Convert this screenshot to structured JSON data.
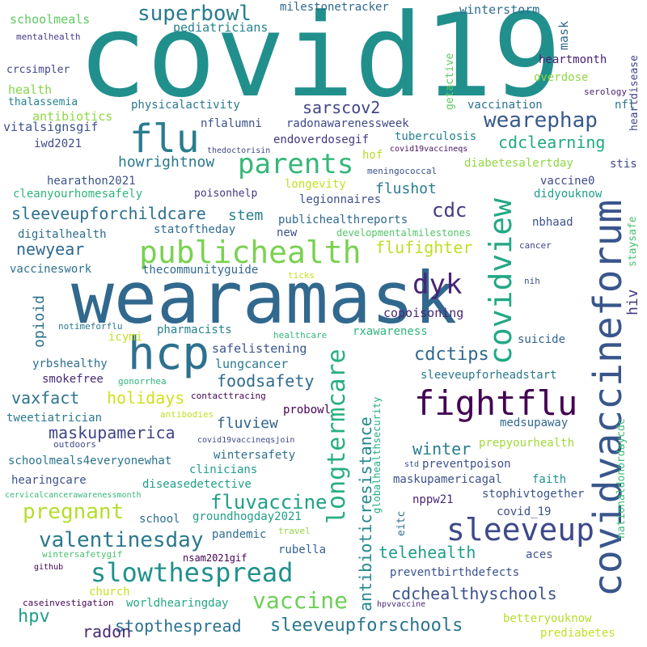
{
  "words": [
    {
      "text": "covid19",
      "color": "#21908d"
    },
    {
      "text": "wearamask",
      "color": "#31688e"
    },
    {
      "text": "hcp",
      "color": "#2c728e"
    },
    {
      "text": "covidvaccineforum",
      "color": "#39568c"
    },
    {
      "text": "flu",
      "color": "#287d8e"
    },
    {
      "text": "fightflu",
      "color": "#440154"
    },
    {
      "text": "publichealth",
      "color": "#7ad151"
    },
    {
      "text": "covidview",
      "color": "#22a884"
    },
    {
      "text": "sleeveup",
      "color": "#3e4989"
    },
    {
      "text": "parents",
      "color": "#35b779"
    },
    {
      "text": "dyk",
      "color": "#482475"
    },
    {
      "text": "slowthespread",
      "color": "#21918c"
    },
    {
      "text": "longtermcare",
      "color": "#29af7f"
    },
    {
      "text": "vaccine",
      "color": "#6ece58"
    },
    {
      "text": "valentinesday",
      "color": "#2a788e"
    },
    {
      "text": "superbowl",
      "color": "#287c8e"
    },
    {
      "text": "pregnant",
      "color": "#b5de2b"
    },
    {
      "text": "wearephap",
      "color": "#38598c"
    },
    {
      "text": "fluvaccine",
      "color": "#1fa088"
    },
    {
      "text": "sleeveupforschools",
      "color": "#2a768e"
    },
    {
      "text": "cdc",
      "color": "#443a83"
    },
    {
      "text": "sleeveupforchildcare",
      "color": "#2d708e"
    },
    {
      "text": "foodsafety",
      "color": "#306a8e"
    },
    {
      "text": "cdctips",
      "color": "#31688e"
    },
    {
      "text": "holidays",
      "color": "#d0e11c"
    },
    {
      "text": "maskupamerica",
      "color": "#404688"
    },
    {
      "text": "hpv",
      "color": "#1f9e89"
    },
    {
      "text": "antibioticresistance",
      "color": "#23888e"
    },
    {
      "text": "flufighter",
      "color": "#bddf26"
    },
    {
      "text": "howrightnow",
      "color": "#2a788e"
    },
    {
      "text": "cdchealthyschools",
      "color": "#3b528b"
    },
    {
      "text": "stopthespread",
      "color": "#2c728e"
    },
    {
      "text": "vaxfact",
      "color": "#2c728e"
    },
    {
      "text": "telehealth",
      "color": "#1f9e89"
    },
    {
      "text": "winter",
      "color": "#287d8e"
    },
    {
      "text": "newyear",
      "color": "#31688e"
    },
    {
      "text": "radon",
      "color": "#482878"
    },
    {
      "text": "sarscov2",
      "color": "#414487"
    },
    {
      "text": "cdclearning",
      "color": "#22a884"
    },
    {
      "text": "flushot",
      "color": "#287d8e"
    },
    {
      "text": "opioid",
      "color": "#2c728e"
    },
    {
      "text": "fluview",
      "color": "#33638d"
    },
    {
      "text": "stem",
      "color": "#26828e"
    },
    {
      "text": "hiv",
      "color": "#453781"
    },
    {
      "text": "winterstorm",
      "color": "#2e6e8e"
    },
    {
      "text": "mask",
      "color": "#31688e"
    },
    {
      "text": "lungcancer",
      "color": "#2a788e"
    },
    {
      "text": "safelistening",
      "color": "#3a548c"
    },
    {
      "text": "pediatricians",
      "color": "#26828e"
    },
    {
      "text": "schoolmeals",
      "color": "#5ec962"
    },
    {
      "text": "milestonetracker",
      "color": "#31688e"
    },
    {
      "text": "mentalhealth",
      "color": "#443983"
    },
    {
      "text": "crcsimpler",
      "color": "#404688"
    },
    {
      "text": "health",
      "color": "#86d549"
    },
    {
      "text": "thalassemia",
      "color": "#26828e"
    },
    {
      "text": "antibiotics",
      "color": "#90d743"
    },
    {
      "text": "vitalsignsgif",
      "color": "#3b528b"
    },
    {
      "text": "iwd2021",
      "color": "#3e4c8a"
    },
    {
      "text": "physicalactivity",
      "color": "#2a788e"
    },
    {
      "text": "nflalumni",
      "color": "#3b528b"
    },
    {
      "text": "radonawarenessweek",
      "color": "#3e4989"
    },
    {
      "text": "vaccination",
      "color": "#2c728e"
    },
    {
      "text": "heartmonth",
      "color": "#482173"
    },
    {
      "text": "overdose",
      "color": "#90d743"
    },
    {
      "text": "serology",
      "color": "#481f70"
    },
    {
      "text": "heartdisease",
      "color": "#414487"
    },
    {
      "text": "nfl",
      "color": "#2a788e"
    },
    {
      "text": "getactive",
      "color": "#5ec962"
    },
    {
      "text": "thedoctorisin",
      "color": "#3e4989"
    },
    {
      "text": "endoverdosegif",
      "color": "#453781"
    },
    {
      "text": "tuberculosis",
      "color": "#26828e"
    },
    {
      "text": "covid19vaccineqs",
      "color": "#471365"
    },
    {
      "text": "diabetesalertday",
      "color": "#90d743"
    },
    {
      "text": "stis",
      "color": "#404688"
    },
    {
      "text": "hof",
      "color": "#b5de2b"
    },
    {
      "text": "meningococcal",
      "color": "#3b528b"
    },
    {
      "text": "hearathon2021",
      "color": "#3b528b"
    },
    {
      "text": "cleanyourhomesafely",
      "color": "#2fb47c"
    },
    {
      "text": "poisonhelp",
      "color": "#453781"
    },
    {
      "text": "legionnaires",
      "color": "#3b528b"
    },
    {
      "text": "longevity",
      "color": "#c2df23"
    },
    {
      "text": "vaccine0",
      "color": "#3e4989"
    },
    {
      "text": "didyouknow",
      "color": "#1f9e89"
    },
    {
      "text": "nbhaad",
      "color": "#3b528b"
    },
    {
      "text": "staysafe",
      "color": "#4ac16d"
    },
    {
      "text": "digitalhealth",
      "color": "#2e6e8e"
    },
    {
      "text": "statoftheday",
      "color": "#2e6e8e"
    },
    {
      "text": "publichealthreports",
      "color": "#31688e"
    },
    {
      "text": "new",
      "color": "#3b528b"
    },
    {
      "text": "developmentalmilestones",
      "color": "#52c569"
    },
    {
      "text": "cancer",
      "color": "#404688"
    },
    {
      "text": "vaccineswork",
      "color": "#2c728e"
    },
    {
      "text": "thecommunityguide",
      "color": "#31688e"
    },
    {
      "text": "ticks",
      "color": "#c8e020"
    },
    {
      "text": "nih",
      "color": "#3b528b"
    },
    {
      "text": "copoisoning",
      "color": "#482878"
    },
    {
      "text": "notimeforflu",
      "color": "#2a788e"
    },
    {
      "text": "icymi",
      "color": "#c2df23"
    },
    {
      "text": "pharmacists",
      "color": "#26828e"
    },
    {
      "text": "healthcare",
      "color": "#35b779"
    },
    {
      "text": "rxawareness",
      "color": "#2fb47c"
    },
    {
      "text": "suicide",
      "color": "#33638d"
    },
    {
      "text": "yrbshealthy",
      "color": "#2e6e8e"
    },
    {
      "text": "smokefree",
      "color": "#482878"
    },
    {
      "text": "gonorrhea",
      "color": "#2fb47c"
    },
    {
      "text": "contacttracing",
      "color": "#440154"
    },
    {
      "text": "globalhealthsecurity",
      "color": "#25ac82"
    },
    {
      "text": "sleeveupforheadstart",
      "color": "#2a788e"
    },
    {
      "text": "nationaldonordaycdc",
      "color": "#3dbc74"
    },
    {
      "text": "probowl",
      "color": "#440154"
    },
    {
      "text": "tweetiatrician",
      "color": "#2a788e"
    },
    {
      "text": "antibodies",
      "color": "#c2df23"
    },
    {
      "text": "medsupaway",
      "color": "#31688e"
    },
    {
      "text": "outdoors",
      "color": "#3e4989"
    },
    {
      "text": "covid19vaccineqsjoin",
      "color": "#3e4989"
    },
    {
      "text": "prepyourhealth",
      "color": "#a0da39"
    },
    {
      "text": "schoolmeals4everyonewhat",
      "color": "#2c728e"
    },
    {
      "text": "wintersafety",
      "color": "#2e6e8e"
    },
    {
      "text": "clinicians",
      "color": "#1f9e89"
    },
    {
      "text": "preventpoison",
      "color": "#3b528b"
    },
    {
      "text": "std",
      "color": "#3b528b"
    },
    {
      "text": "maskupamericagal",
      "color": "#3b528b"
    },
    {
      "text": "faith",
      "color": "#21918c"
    },
    {
      "text": "hearingcare",
      "color": "#3b528b"
    },
    {
      "text": "diseasedetective",
      "color": "#1f9e89"
    },
    {
      "text": "cervicalcancerawarenessmonth",
      "color": "#35b779"
    },
    {
      "text": "stophivtogether",
      "color": "#3b528b"
    },
    {
      "text": "nppw21",
      "color": "#482878"
    },
    {
      "text": "school",
      "color": "#2e6e8e"
    },
    {
      "text": "groundhogday2021",
      "color": "#1f9e89"
    },
    {
      "text": "covid_19",
      "color": "#3b528b"
    },
    {
      "text": "eitc",
      "color": "#2e6e8e"
    },
    {
      "text": "pandemic",
      "color": "#2e6e8e"
    },
    {
      "text": "travel",
      "color": "#90d743"
    },
    {
      "text": "wintersafetygif",
      "color": "#4ac16d"
    },
    {
      "text": "nsam2021gif",
      "color": "#440154"
    },
    {
      "text": "rubella",
      "color": "#33638d"
    },
    {
      "text": "aces",
      "color": "#3b528b"
    },
    {
      "text": "github",
      "color": "#440154"
    },
    {
      "text": "preventbirthdefects",
      "color": "#3b528b"
    },
    {
      "text": "church",
      "color": "#c8e020"
    },
    {
      "text": "caseinvestigation",
      "color": "#440154"
    },
    {
      "text": "worldhearingday",
      "color": "#22a884"
    },
    {
      "text": "hpvvaccine",
      "color": "#482878"
    },
    {
      "text": "betteryouknow",
      "color": "#b5de2b"
    },
    {
      "text": "prediabetes",
      "color": "#c2df23"
    }
  ]
}
